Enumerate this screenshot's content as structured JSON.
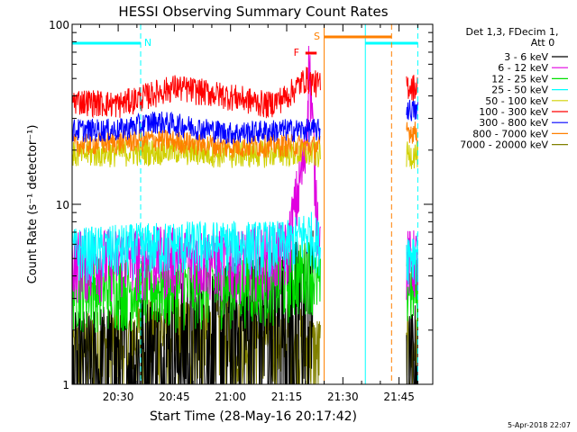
{
  "chart_data": {
    "type": "line",
    "title": "HESSI Observing Summary Count Rates",
    "xlabel": "Start Time (28-May-16 20:17:42)",
    "ylabel": "Count Rate (s⁻¹ detector⁻¹)",
    "yscale": "log",
    "ylim": [
      1,
      100
    ],
    "xlim": [
      "20:17:42",
      "21:54:00"
    ],
    "x_unit": "UT time",
    "x_ticks": [
      "20:30",
      "20:45",
      "21:00",
      "21:15",
      "21:30",
      "21:45"
    ],
    "y_ticks": [
      "1",
      "10",
      "100"
    ],
    "legend_title": [
      "Det 1,3, FDecim 1,",
      "Att 0"
    ],
    "legend_position": "right",
    "series": [
      {
        "name": "3 - 6 keV",
        "color": "#000000",
        "points": [
          [
            "20:17:42",
            1.0
          ],
          [
            "20:40",
            1.5
          ],
          [
            "21:00",
            2.0
          ],
          [
            "21:15",
            2.5
          ],
          [
            "21:22",
            3.0
          ]
        ],
        "resume": [
          [
            "21:47",
            1.0
          ],
          [
            "21:50",
            1.2
          ]
        ]
      },
      {
        "name": "6 - 12 keV",
        "color": "#e000e0",
        "points": [
          [
            "20:17:42",
            5.0
          ],
          [
            "20:40",
            5.2
          ],
          [
            "21:00",
            5.0
          ],
          [
            "21:15",
            5.5
          ],
          [
            "21:20",
            20
          ],
          [
            "21:21",
            65
          ],
          [
            "21:22",
            25
          ],
          [
            "21:23",
            10
          ],
          [
            "21:24",
            6
          ]
        ],
        "resume": [
          [
            "21:47",
            5.0
          ],
          [
            "21:50",
            5.0
          ]
        ]
      },
      {
        "name": "12 - 25 keV",
        "color": "#00e000",
        "points": [
          [
            "20:17:42",
            3.5
          ],
          [
            "20:45",
            3.5
          ],
          [
            "21:15",
            3.8
          ],
          [
            "21:21",
            4.5
          ],
          [
            "21:24",
            3.5
          ]
        ],
        "resume": [
          [
            "21:47",
            3.5
          ],
          [
            "21:50",
            3.5
          ]
        ]
      },
      {
        "name": "25 - 50 keV",
        "color": "#00ffff",
        "points": [
          [
            "20:17:42",
            5.5
          ],
          [
            "20:45",
            6.0
          ],
          [
            "21:15",
            6.0
          ],
          [
            "21:21",
            7.0
          ],
          [
            "21:24",
            6.0
          ]
        ],
        "resume": [
          [
            "21:47",
            5.5
          ],
          [
            "21:50",
            5.5
          ]
        ]
      },
      {
        "name": "50 - 100 keV",
        "color": "#d0d000",
        "points": [
          [
            "20:17:42",
            19
          ],
          [
            "20:45",
            20
          ],
          [
            "21:00",
            19
          ],
          [
            "21:15",
            19.5
          ],
          [
            "21:24",
            19
          ]
        ],
        "resume": [
          [
            "21:47",
            19
          ],
          [
            "21:50",
            19
          ]
        ]
      },
      {
        "name": "100 - 300 keV",
        "color": "#ff0000",
        "points": [
          [
            "20:17:42",
            38
          ],
          [
            "20:30",
            36
          ],
          [
            "20:45",
            45
          ],
          [
            "21:00",
            40
          ],
          [
            "21:10",
            36
          ],
          [
            "21:15",
            40
          ],
          [
            "21:20",
            50
          ],
          [
            "21:24",
            46
          ]
        ],
        "resume": [
          [
            "21:47",
            46
          ],
          [
            "21:50",
            45
          ]
        ]
      },
      {
        "name": "300 - 800 keV",
        "color": "#0000ff",
        "points": [
          [
            "20:17:42",
            26
          ],
          [
            "20:30",
            26
          ],
          [
            "20:40",
            29
          ],
          [
            "20:50",
            27
          ],
          [
            "21:00",
            25
          ],
          [
            "21:15",
            26
          ],
          [
            "21:24",
            26
          ]
        ],
        "resume": [
          [
            "21:47",
            34
          ],
          [
            "21:50",
            33
          ]
        ]
      },
      {
        "name": "800 - 7000 keV",
        "color": "#ff8000",
        "points": [
          [
            "20:17:42",
            21.5
          ],
          [
            "20:40",
            23
          ],
          [
            "21:00",
            21
          ],
          [
            "21:15",
            21.5
          ],
          [
            "21:24",
            21
          ]
        ],
        "resume": [
          [
            "21:47",
            26
          ],
          [
            "21:50",
            25
          ]
        ]
      },
      {
        "name": "7000 - 20000 keV",
        "color": "#808000",
        "points": [
          [
            "20:17:42",
            1.5
          ],
          [
            "20:40",
            2.0
          ],
          [
            "21:00",
            2.0
          ],
          [
            "21:15",
            1.8
          ],
          [
            "21:24",
            1.5
          ]
        ],
        "resume": [
          [
            "21:47",
            1.5
          ],
          [
            "21:50",
            1.5
          ]
        ]
      }
    ],
    "annotations": [
      {
        "label": "N",
        "color": "#00ffff",
        "type": "night_interval",
        "bars": [
          [
            "20:17:42",
            "20:36"
          ],
          [
            "21:36",
            "21:50"
          ]
        ],
        "lines": [
          "20:36",
          "21:36",
          "21:50"
        ]
      },
      {
        "label": "S",
        "color": "#ff8000",
        "type": "saa_interval",
        "bars": [
          [
            "21:25",
            "21:43"
          ]
        ],
        "lines": [
          "21:25",
          "21:43"
        ]
      },
      {
        "label": "F",
        "color": "#ff0000",
        "type": "flare",
        "bars": [
          [
            "21:20",
            "21:23"
          ]
        ]
      }
    ],
    "grid": false
  },
  "footer": {
    "timestamp": "5-Apr-2018 22:07"
  }
}
